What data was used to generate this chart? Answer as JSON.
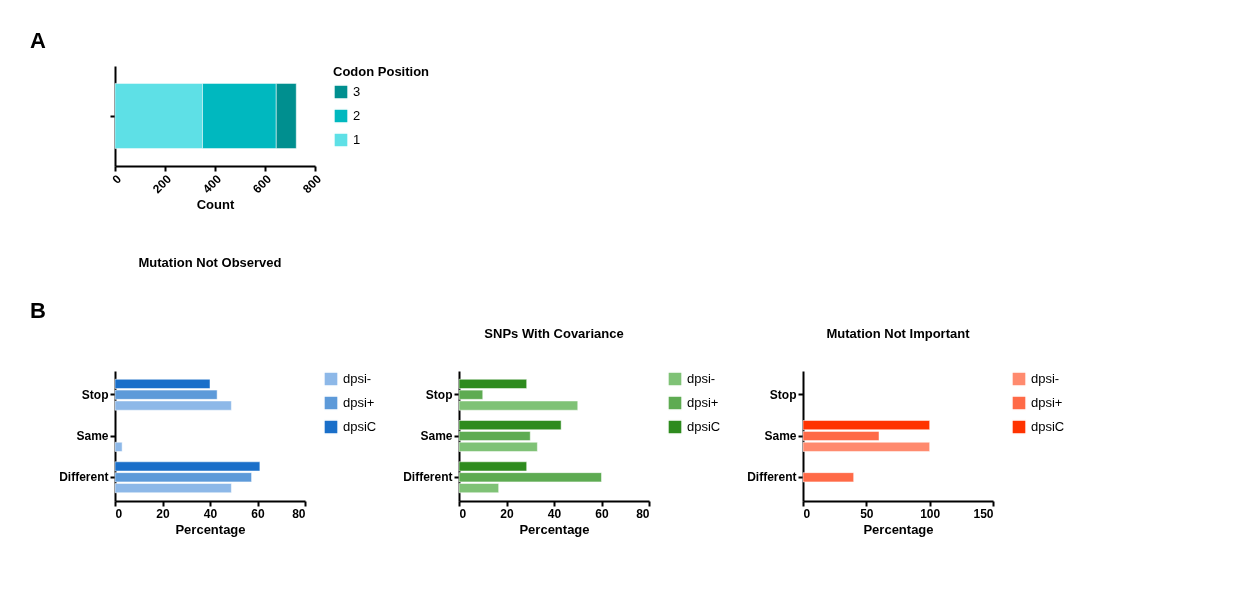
{
  "chart_data": [
    {
      "type": "bar",
      "orientation": "horizontal",
      "stacked": true,
      "annotations": [
        "A"
      ],
      "xlabel": "Count",
      "legend_title": "Codon Position",
      "legend": "right",
      "grid": false,
      "categories": [
        null
      ],
      "xlim": [
        0,
        800
      ],
      "xticks": [
        0,
        200,
        400,
        600,
        800
      ],
      "series": [
        {
          "name": "1",
          "color": "#5ee0e6",
          "values": [
            350
          ]
        },
        {
          "name": "2",
          "color": "#00b8bf",
          "values": [
            295
          ]
        },
        {
          "name": "3",
          "color": "#008f8f",
          "values": [
            80
          ]
        }
      ]
    },
    {
      "type": "bar",
      "orientation": "horizontal",
      "annotations": [
        "B"
      ],
      "title": "Mutation Not Observed",
      "xlabel": "Percentage",
      "legend": "right",
      "grid": false,
      "categories": [
        "Stop",
        "Same",
        "Different"
      ],
      "xlim": [
        0,
        80
      ],
      "xticks": [
        0,
        20,
        40,
        60,
        80
      ],
      "series": [
        {
          "name": "dpsi-",
          "color": "#8db8e8",
          "values": [
            49,
            3,
            49
          ]
        },
        {
          "name": "dpsi+",
          "color": "#5d9ad9",
          "values": [
            43,
            null,
            57.5
          ]
        },
        {
          "name": "dpsiC",
          "color": "#1a6fc9",
          "values": [
            40,
            null,
            61
          ]
        }
      ]
    },
    {
      "type": "bar",
      "orientation": "horizontal",
      "title": "SNPs With Covariance",
      "xlabel": "Percentage",
      "legend": "right",
      "grid": false,
      "categories": [
        "Stop",
        "Same",
        "Different"
      ],
      "xlim": [
        0,
        80
      ],
      "xticks": [
        0,
        20,
        40,
        60,
        80
      ],
      "series": [
        {
          "name": "dpsi-",
          "color": "#7fc276",
          "values": [
            50,
            33,
            16.7
          ]
        },
        {
          "name": "dpsi+",
          "color": "#5eab52",
          "values": [
            10,
            30,
            60
          ]
        },
        {
          "name": "dpsiC",
          "color": "#2e8b1e",
          "values": [
            28.5,
            43,
            28.5
          ]
        }
      ]
    },
    {
      "type": "bar",
      "orientation": "horizontal",
      "title": "Mutation Not Important",
      "xlabel": "Percentage",
      "legend": "right",
      "grid": false,
      "categories": [
        "Stop",
        "Same",
        "Different"
      ],
      "xlim": [
        0,
        150
      ],
      "xticks": [
        0,
        50,
        100,
        150
      ],
      "series": [
        {
          "name": "dpsi-",
          "color": "#ff8a6e",
          "values": [
            null,
            100,
            null
          ]
        },
        {
          "name": "dpsi+",
          "color": "#ff6a47",
          "values": [
            null,
            60,
            40
          ]
        },
        {
          "name": "dpsiC",
          "color": "#ff3300",
          "values": [
            null,
            100,
            null
          ]
        }
      ]
    }
  ]
}
